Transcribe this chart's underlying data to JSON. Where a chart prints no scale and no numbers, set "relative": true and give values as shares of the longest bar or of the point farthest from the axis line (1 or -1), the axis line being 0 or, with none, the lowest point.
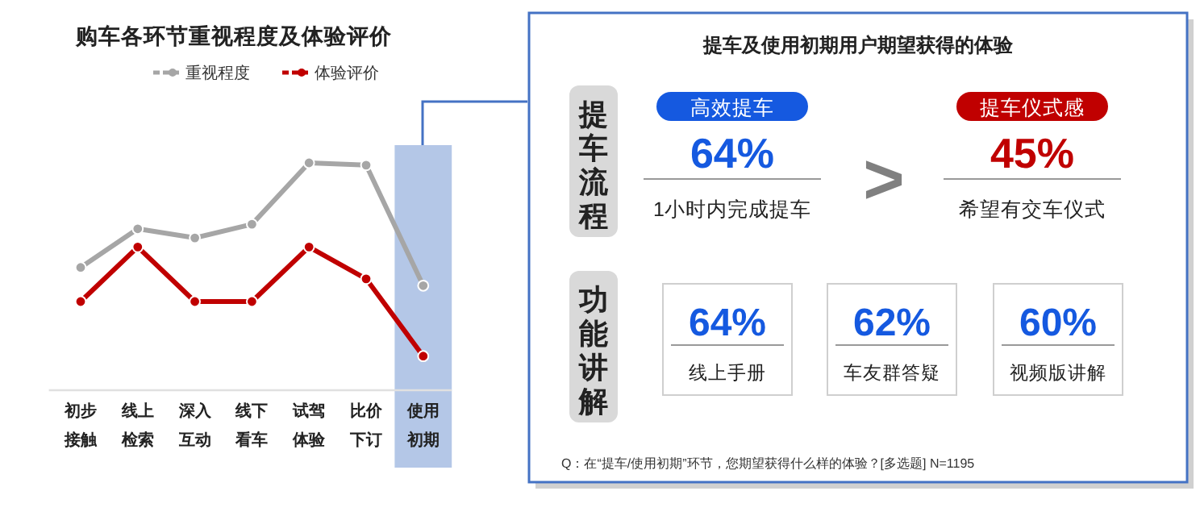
{
  "chart_data": [
    {
      "type": "line",
      "title": "购车各环节重视程度及体验评价",
      "relative": true,
      "marker": "circle",
      "legend": "top",
      "grid": false,
      "categories": [
        "初步接触",
        "线上检索",
        "深入互动",
        "线下看车",
        "试驾体验",
        "比价下订",
        "使用初期"
      ],
      "series": [
        {
          "name": "重视程度",
          "color": "#a6a6a6",
          "values": [
            0.54,
            0.71,
            0.67,
            0.73,
            1,
            0.99,
            0.46
          ]
        },
        {
          "name": "体验评价",
          "color": "#c00000",
          "values": [
            0.39,
            0.63,
            0.39,
            0.39,
            0.63,
            0.49,
            0.15
          ]
        }
      ],
      "bands": [
        {
          "axis": "x",
          "from": "使用初期",
          "to": "使用初期",
          "color": "#b4c7e7"
        }
      ]
    },
    {
      "type": "other",
      "title": "提车及使用初期用户期望获得的体验",
      "categories": [
        "高效提车",
        "提车仪式感",
        "线上手册",
        "车友群答疑",
        "视频版讲解"
      ],
      "value_labels": [
        "64%",
        "45%",
        "64%",
        "62%",
        "60%"
      ],
      "colors": [
        "#1559e0",
        "#c00000",
        "#1559e0",
        "#1559e0",
        "#1559e0"
      ],
      "annotations": [
        "1小时内完成提车",
        "希望有交车仪式",
        "提车流程",
        "功能讲解",
        ">",
        "Q：在“提车/使用初期”环节，您期望获得什么样的体验？[多选题] N=1195"
      ]
    }
  ]
}
